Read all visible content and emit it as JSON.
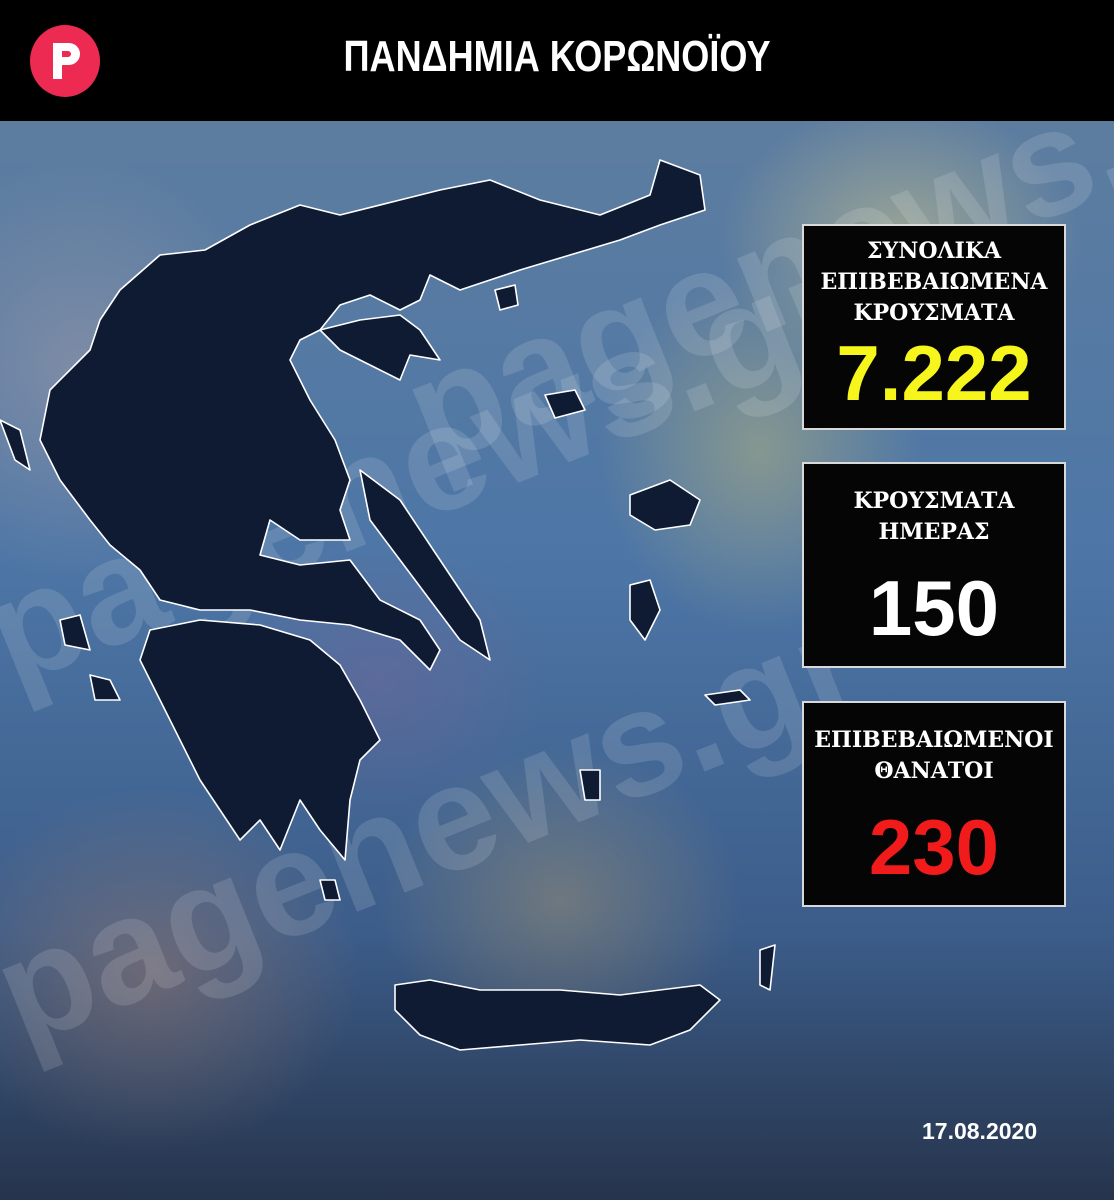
{
  "header": {
    "title": "ΠΑΝΔΗΜΙΑ ΚΟΡΩΝΟΪΟΥ",
    "logo_letter": "P",
    "logo_color": "#ec2a52"
  },
  "watermark": "pagenews.gr",
  "stats": [
    {
      "label_lines": [
        "ΣΥΝΟΛΙΚΑ",
        "ΕΠΙΒΕΒΑΙΩΜΕΝΑ",
        "ΚΡΟΥΣΜΑΤΑ"
      ],
      "value": "7.222",
      "color": "#f6f51c"
    },
    {
      "label_lines": [
        "ΚΡΟΥΣΜΑΤΑ",
        "ΗΜΕΡΑΣ"
      ],
      "value": "150",
      "color": "#ffffff"
    },
    {
      "label_lines": [
        "ΕΠΙΒΕΒΑΙΩΜΕΝΟΙ",
        "ΘΑΝΑΤΟΙ"
      ],
      "value": "230",
      "color": "#f21b1b"
    }
  ],
  "date": "17.08.2020",
  "map_color": "#0f1a33"
}
